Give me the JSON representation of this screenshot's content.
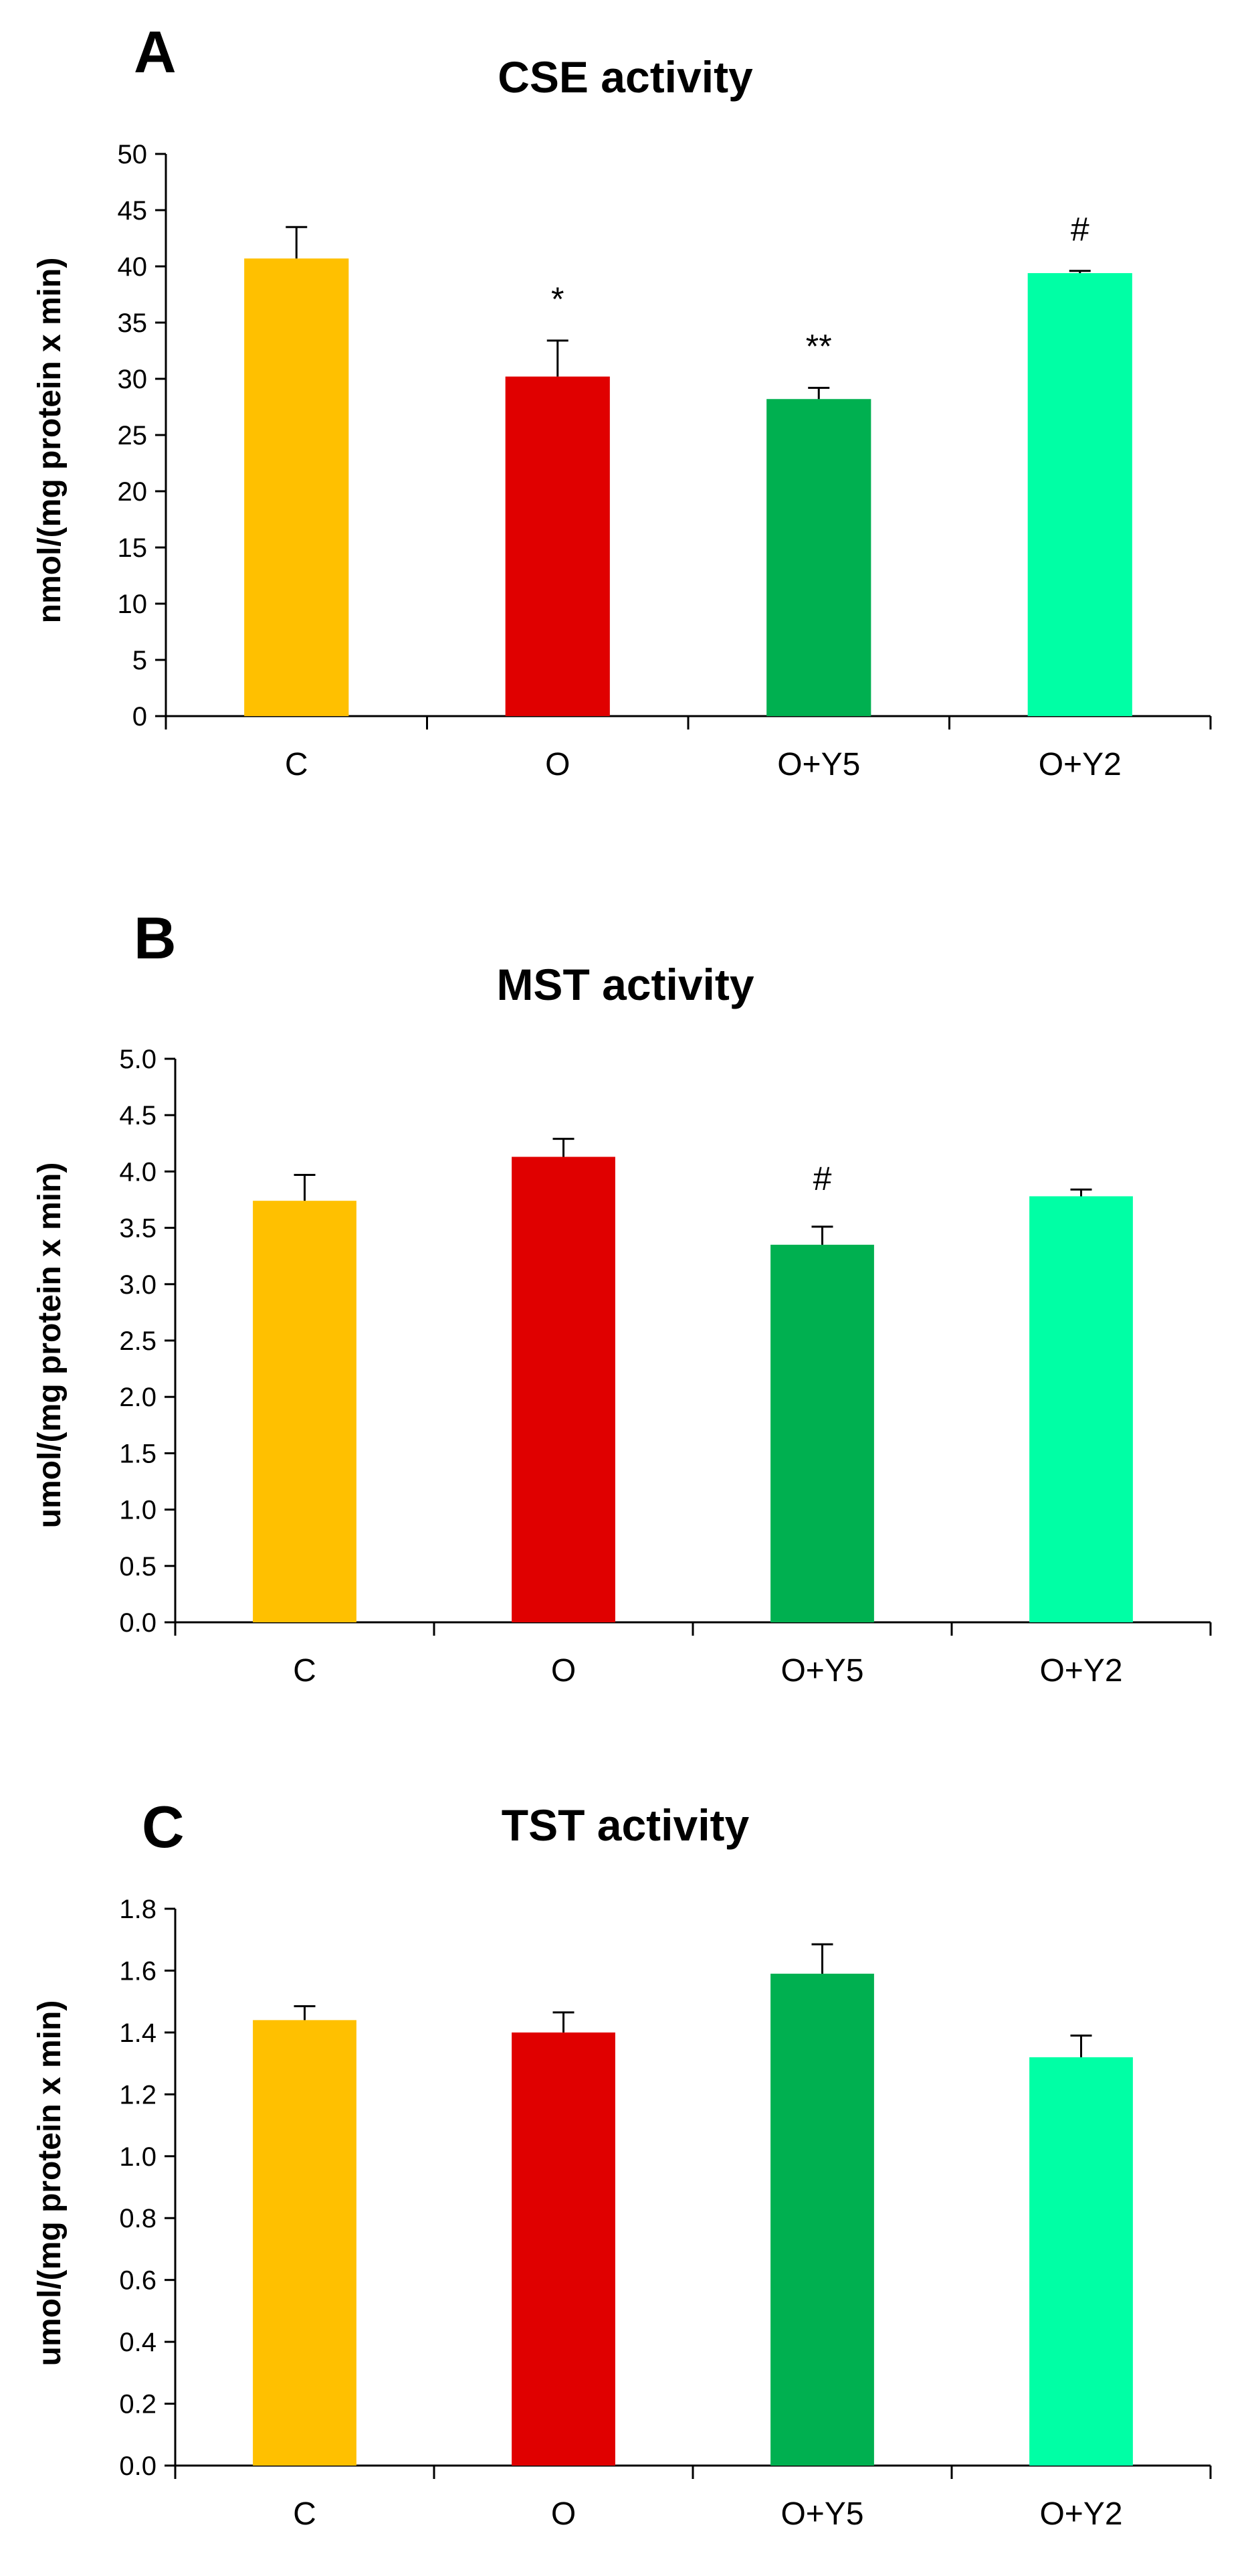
{
  "chart_data": [
    {
      "type": "bar",
      "panel": "A",
      "title": "CSE activity",
      "ylabel": "nmol/(mg protein x min)",
      "xlabel": "",
      "categories": [
        "C",
        "O",
        "O+Y5",
        "O+Y2"
      ],
      "values": [
        40.7,
        30.2,
        28.2,
        39.4
      ],
      "errors": [
        2.8,
        3.2,
        1.0,
        0.2
      ],
      "annotations": [
        "",
        "*",
        "**",
        "#"
      ],
      "colors": [
        "#ffc000",
        "#e00000",
        "#00b050",
        "#00ffa5"
      ],
      "ylim": [
        0,
        50
      ],
      "yticks": [
        "0",
        "5",
        "10",
        "15",
        "20",
        "25",
        "30",
        "35",
        "40",
        "45",
        "50"
      ],
      "grid": false
    },
    {
      "type": "bar",
      "panel": "B",
      "title": "MST activity",
      "ylabel": "umol/(mg protein x min)",
      "xlabel": "",
      "categories": [
        "C",
        "O",
        "O+Y5",
        "O+Y2"
      ],
      "values": [
        3.74,
        4.13,
        3.35,
        3.78
      ],
      "errors": [
        0.23,
        0.16,
        0.16,
        0.06
      ],
      "annotations": [
        "",
        "",
        "#",
        ""
      ],
      "colors": [
        "#ffc000",
        "#e00000",
        "#00b050",
        "#00ffa5"
      ],
      "ylim": [
        0,
        5
      ],
      "yticks": [
        "0.0",
        "0.5",
        "1.0",
        "1.5",
        "2.0",
        "2.5",
        "3.0",
        "3.5",
        "4.0",
        "4.5",
        "5.0"
      ],
      "grid": false
    },
    {
      "type": "bar",
      "panel": "C",
      "title": "TST activity",
      "ylabel": "umol/(mg protein x min)",
      "xlabel": "",
      "categories": [
        "C",
        "O",
        "O+Y5",
        "O+Y2"
      ],
      "values": [
        1.44,
        1.4,
        1.59,
        1.32
      ],
      "errors": [
        0.045,
        0.065,
        0.095,
        0.07
      ],
      "annotations": [
        "",
        "",
        "",
        ""
      ],
      "colors": [
        "#ffc000",
        "#e00000",
        "#00b050",
        "#00ffa5"
      ],
      "ylim": [
        0,
        1.8
      ],
      "yticks": [
        "0.0",
        "0.2",
        "0.4",
        "0.6",
        "0.8",
        "1.0",
        "1.2",
        "1.4",
        "1.6",
        "1.8"
      ],
      "grid": false
    }
  ]
}
